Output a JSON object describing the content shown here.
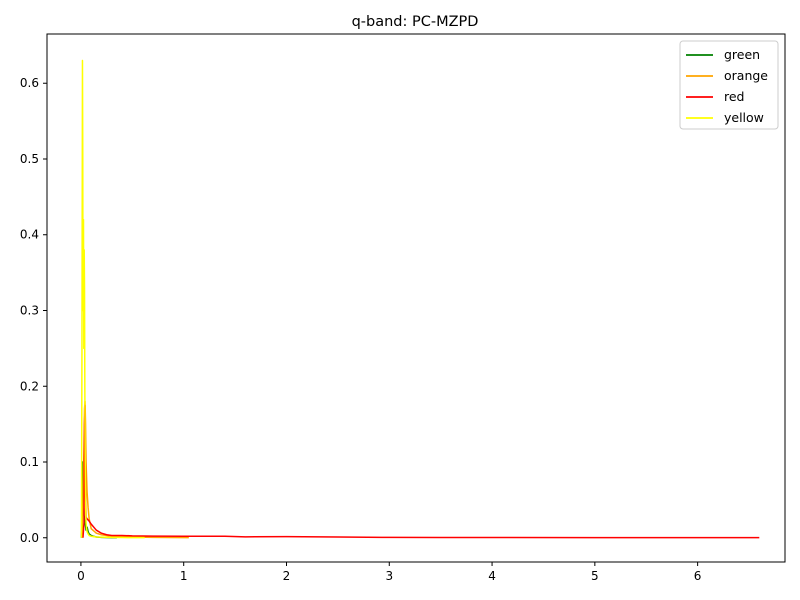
{
  "chart_data": {
    "type": "line",
    "title": "q-band: PC-MZPD",
    "xlabel": "",
    "ylabel": "",
    "xlim": [
      -0.33,
      6.85
    ],
    "ylim": [
      -0.032,
      0.665
    ],
    "xticks": [
      0,
      1,
      2,
      3,
      4,
      5,
      6
    ],
    "yticks": [
      0.0,
      0.1,
      0.2,
      0.3,
      0.4,
      0.5,
      0.6
    ],
    "xtick_labels": [
      "0",
      "1",
      "2",
      "3",
      "4",
      "5",
      "6"
    ],
    "ytick_labels": [
      "0.0",
      "0.1",
      "0.2",
      "0.3",
      "0.4",
      "0.5",
      "0.6"
    ],
    "grid": false,
    "legend_position": "top-right",
    "series": [
      {
        "name": "green",
        "color": "#008000",
        "x": [
          0.005,
          0.01,
          0.015,
          0.02,
          0.025,
          0.03,
          0.04,
          0.05,
          0.06,
          0.07,
          0.08,
          0.1,
          0.12,
          0.15,
          0.2,
          0.25,
          0.3,
          0.35
        ],
        "y": [
          0.0,
          0.02,
          0.06,
          0.1,
          0.05,
          0.03,
          0.02,
          0.01,
          0.014,
          0.008,
          0.005,
          0.003,
          0.002,
          0.001,
          0.0005,
          0.0003,
          0.0002,
          0.0001
        ]
      },
      {
        "name": "orange",
        "color": "#ffa500",
        "x": [
          0.01,
          0.02,
          0.03,
          0.035,
          0.04,
          0.045,
          0.05,
          0.06,
          0.07,
          0.08,
          0.1,
          0.15,
          0.2,
          0.3,
          0.5,
          0.7,
          1.05
        ],
        "y": [
          0.0,
          0.05,
          0.12,
          0.17,
          0.18,
          0.15,
          0.1,
          0.06,
          0.04,
          0.025,
          0.012,
          0.006,
          0.004,
          0.002,
          0.001,
          0.0005,
          0.0002
        ]
      },
      {
        "name": "red",
        "color": "#ff0000",
        "x": [
          0.02,
          0.03,
          0.035,
          0.04,
          0.045,
          0.05,
          0.06,
          0.08,
          0.1,
          0.15,
          0.2,
          0.25,
          0.3,
          0.4,
          0.5,
          0.7,
          1.0,
          1.4,
          1.6,
          2.0,
          2.5,
          3.0,
          3.5,
          4.0,
          5.0,
          6.0,
          6.6
        ],
        "y": [
          0.0,
          0.02,
          0.15,
          0.175,
          0.06,
          0.027,
          0.025,
          0.022,
          0.018,
          0.01,
          0.006,
          0.004,
          0.003,
          0.003,
          0.0025,
          0.0022,
          0.002,
          0.002,
          0.0012,
          0.0015,
          0.001,
          0.0005,
          0.0004,
          0.0003,
          0.0002,
          0.0001,
          0.0001
        ]
      },
      {
        "name": "yellow",
        "color": "#ffff00",
        "x": [
          0.005,
          0.01,
          0.015,
          0.018,
          0.02,
          0.022,
          0.025,
          0.028,
          0.03,
          0.032,
          0.035,
          0.038,
          0.04,
          0.042,
          0.045,
          0.048,
          0.05,
          0.055,
          0.06,
          0.07,
          0.08,
          0.1,
          0.15,
          0.2,
          0.3,
          0.4,
          0.5,
          0.62
        ],
        "y": [
          0.0,
          0.25,
          0.63,
          0.5,
          0.3,
          0.4,
          0.42,
          0.25,
          0.33,
          0.38,
          0.33,
          0.2,
          0.15,
          0.1,
          0.05,
          0.03,
          0.02,
          0.012,
          0.008,
          0.005,
          0.003,
          0.002,
          0.001,
          0.0008,
          0.0005,
          0.0003,
          0.0002,
          0.0001
        ]
      }
    ]
  }
}
